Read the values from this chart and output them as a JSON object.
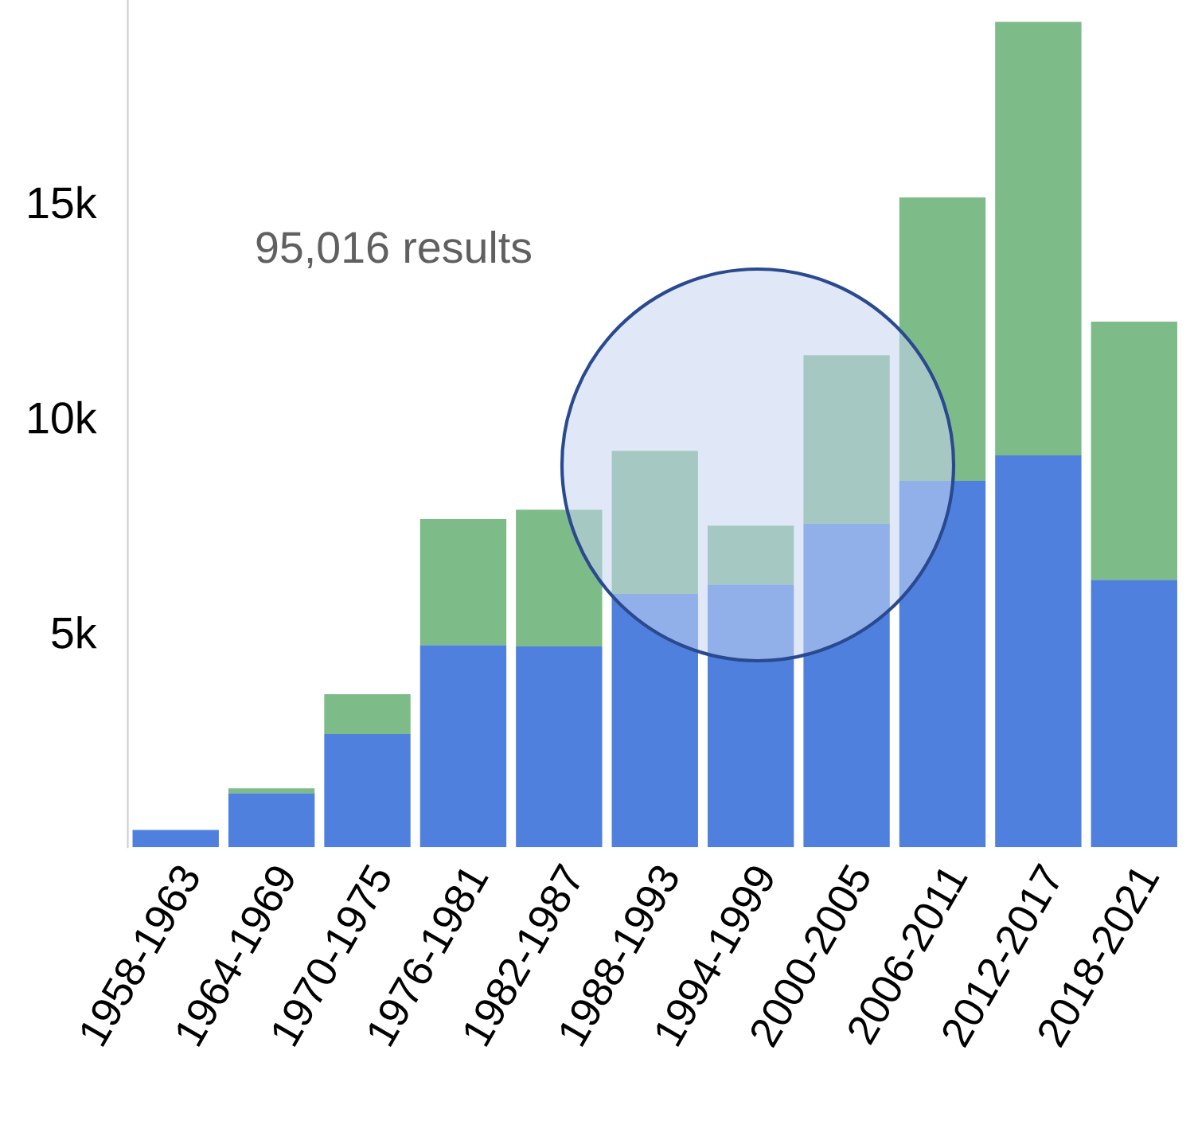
{
  "chart_data": {
    "type": "bar",
    "stacked": true,
    "categories": [
      "1958-1963",
      "1964-1969",
      "1970-1975",
      "1976-1981",
      "1982-1987",
      "1988-1993",
      "1994-1999",
      "2000-2005",
      "2006-2011",
      "2012-2017",
      "2018-2021"
    ],
    "series": [
      {
        "color": "#5080dd",
        "values": [
          400,
          1260,
          2630,
          4700,
          4670,
          5890,
          6110,
          7520,
          8520,
          9110,
          6220
        ]
      },
      {
        "color": "#7dbb88",
        "values": [
          0,
          110,
          930,
          2930,
          3180,
          3330,
          1370,
          3920,
          6590,
          10080,
          6000
        ]
      }
    ],
    "ylim": [
      0,
      19700
    ],
    "yticks": [
      {
        "value": 5000,
        "label": "5k"
      },
      {
        "value": 10000,
        "label": "10k"
      },
      {
        "value": 15000,
        "label": "15k"
      }
    ],
    "annotations": [
      "95,016 results"
    ],
    "grid": false,
    "legend": false
  }
}
